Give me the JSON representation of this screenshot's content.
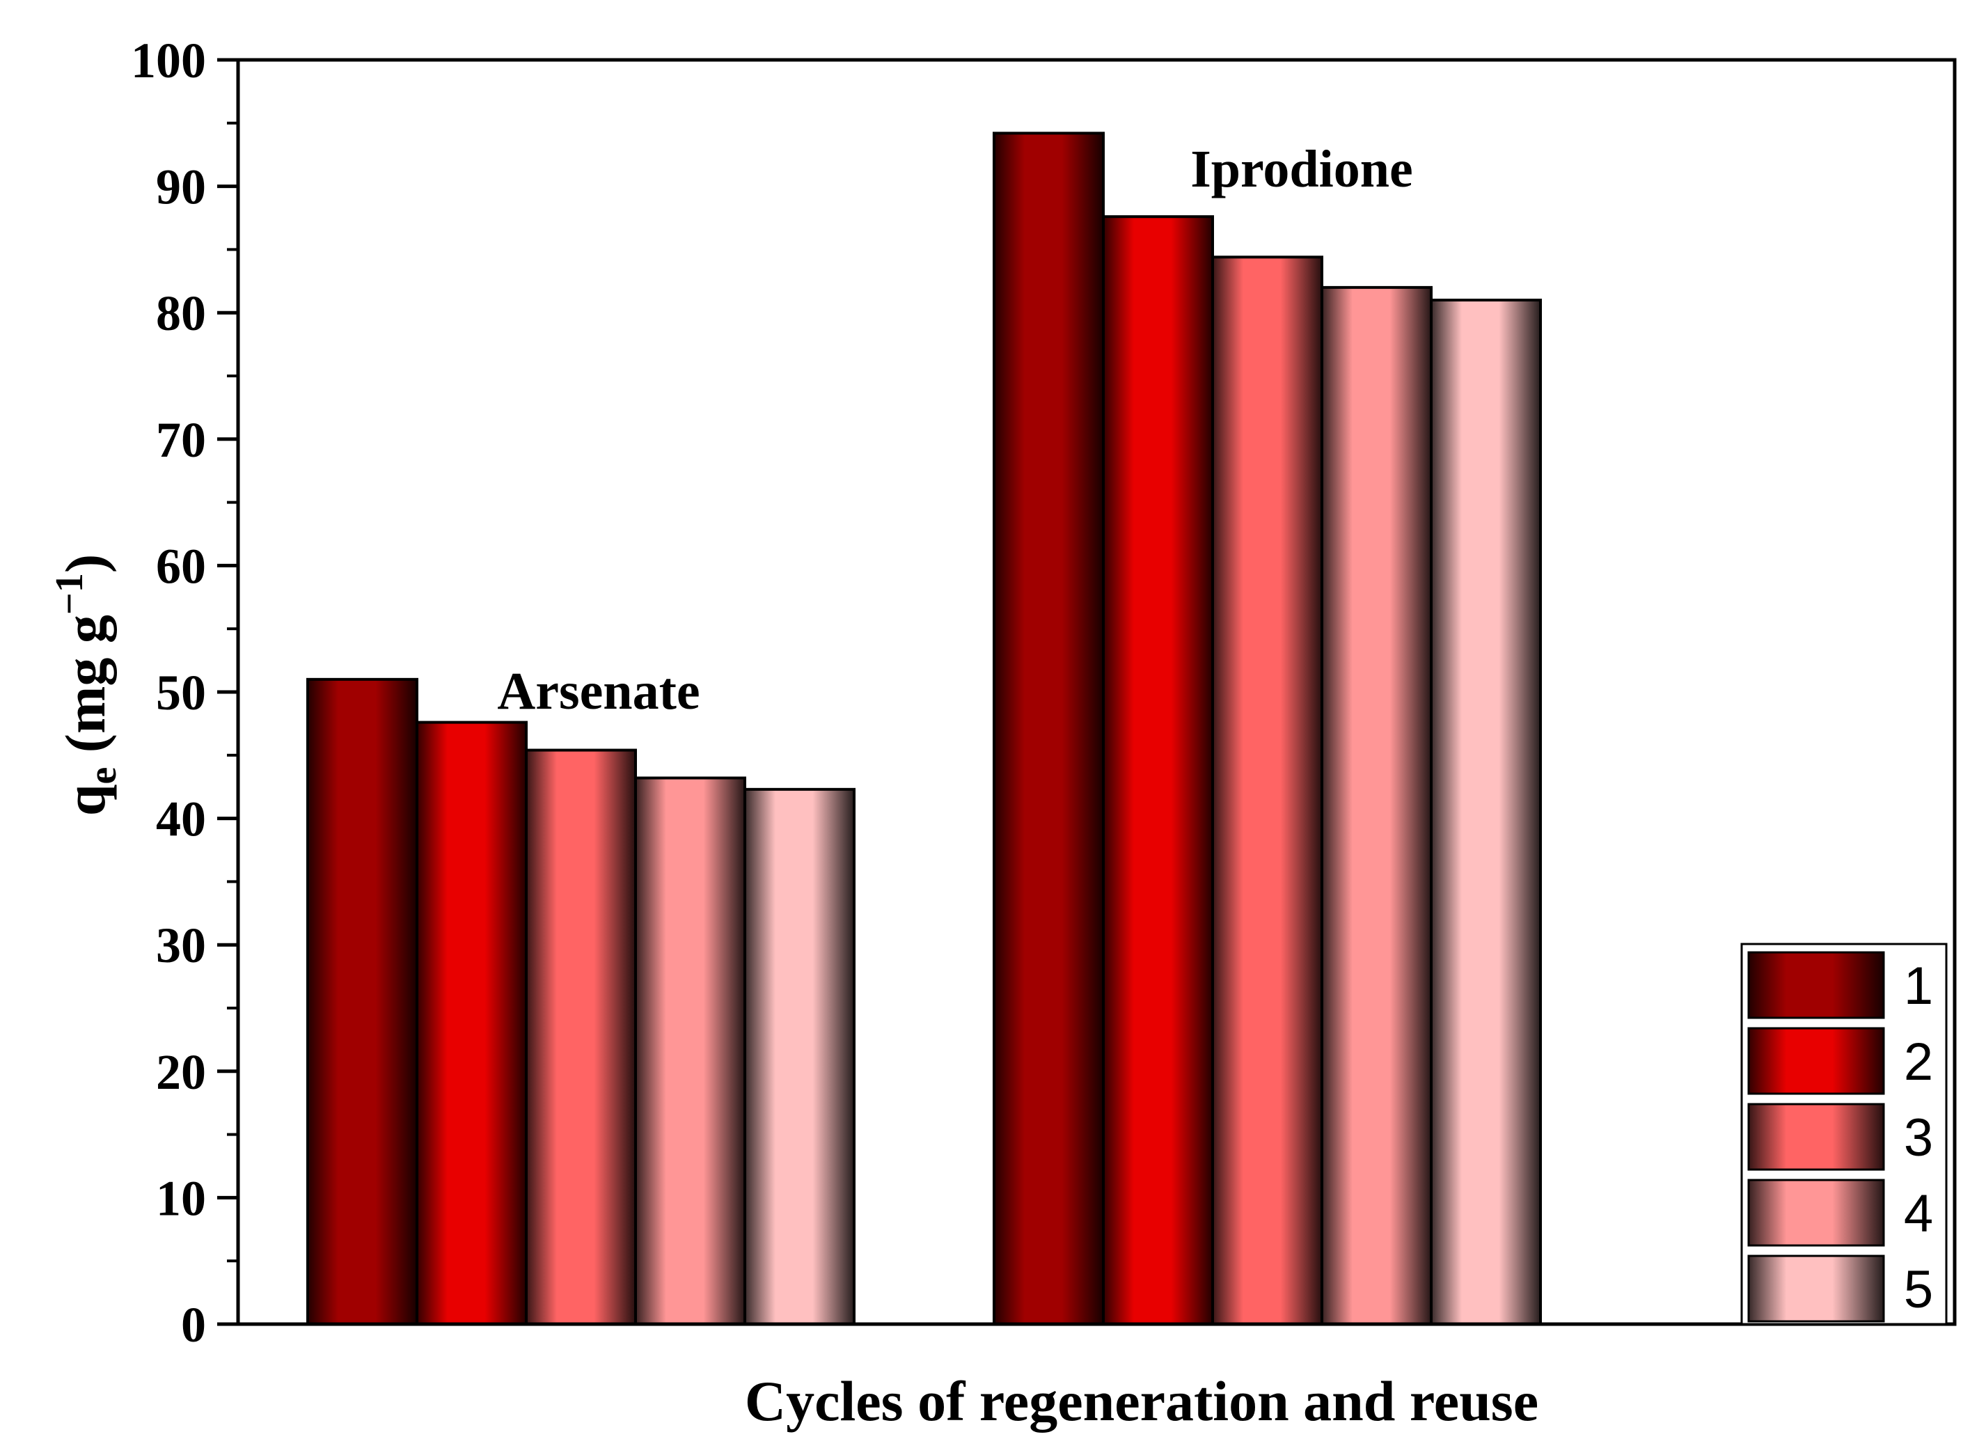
{
  "chart_data": {
    "type": "bar",
    "title": "",
    "xlabel": "Cycles of regeneration and reuse",
    "ylabel": {
      "main": "q",
      "sub": "e",
      "unit_open": " (mg g",
      "sup": "−1",
      "unit_close": ")"
    },
    "ylim": [
      0,
      100
    ],
    "yticks": [
      "0",
      "10",
      "20",
      "30",
      "40",
      "50",
      "60",
      "70",
      "80",
      "90",
      "100"
    ],
    "categories": [
      "Arsenate",
      "Iprodione"
    ],
    "series": [
      {
        "name": "1",
        "values": [
          51.0,
          94.2
        ],
        "color": "#a00000"
      },
      {
        "name": "2",
        "values": [
          47.6,
          87.6
        ],
        "color": "#e80000"
      },
      {
        "name": "3",
        "values": [
          45.4,
          84.4
        ],
        "color": "#ff6464"
      },
      {
        "name": "4",
        "values": [
          43.2,
          82.0
        ],
        "color": "#ff9696"
      },
      {
        "name": "5",
        "values": [
          42.3,
          81.0
        ],
        "color": "#ffc0c0"
      }
    ],
    "legend_position": "bottom-right",
    "grid": false
  }
}
